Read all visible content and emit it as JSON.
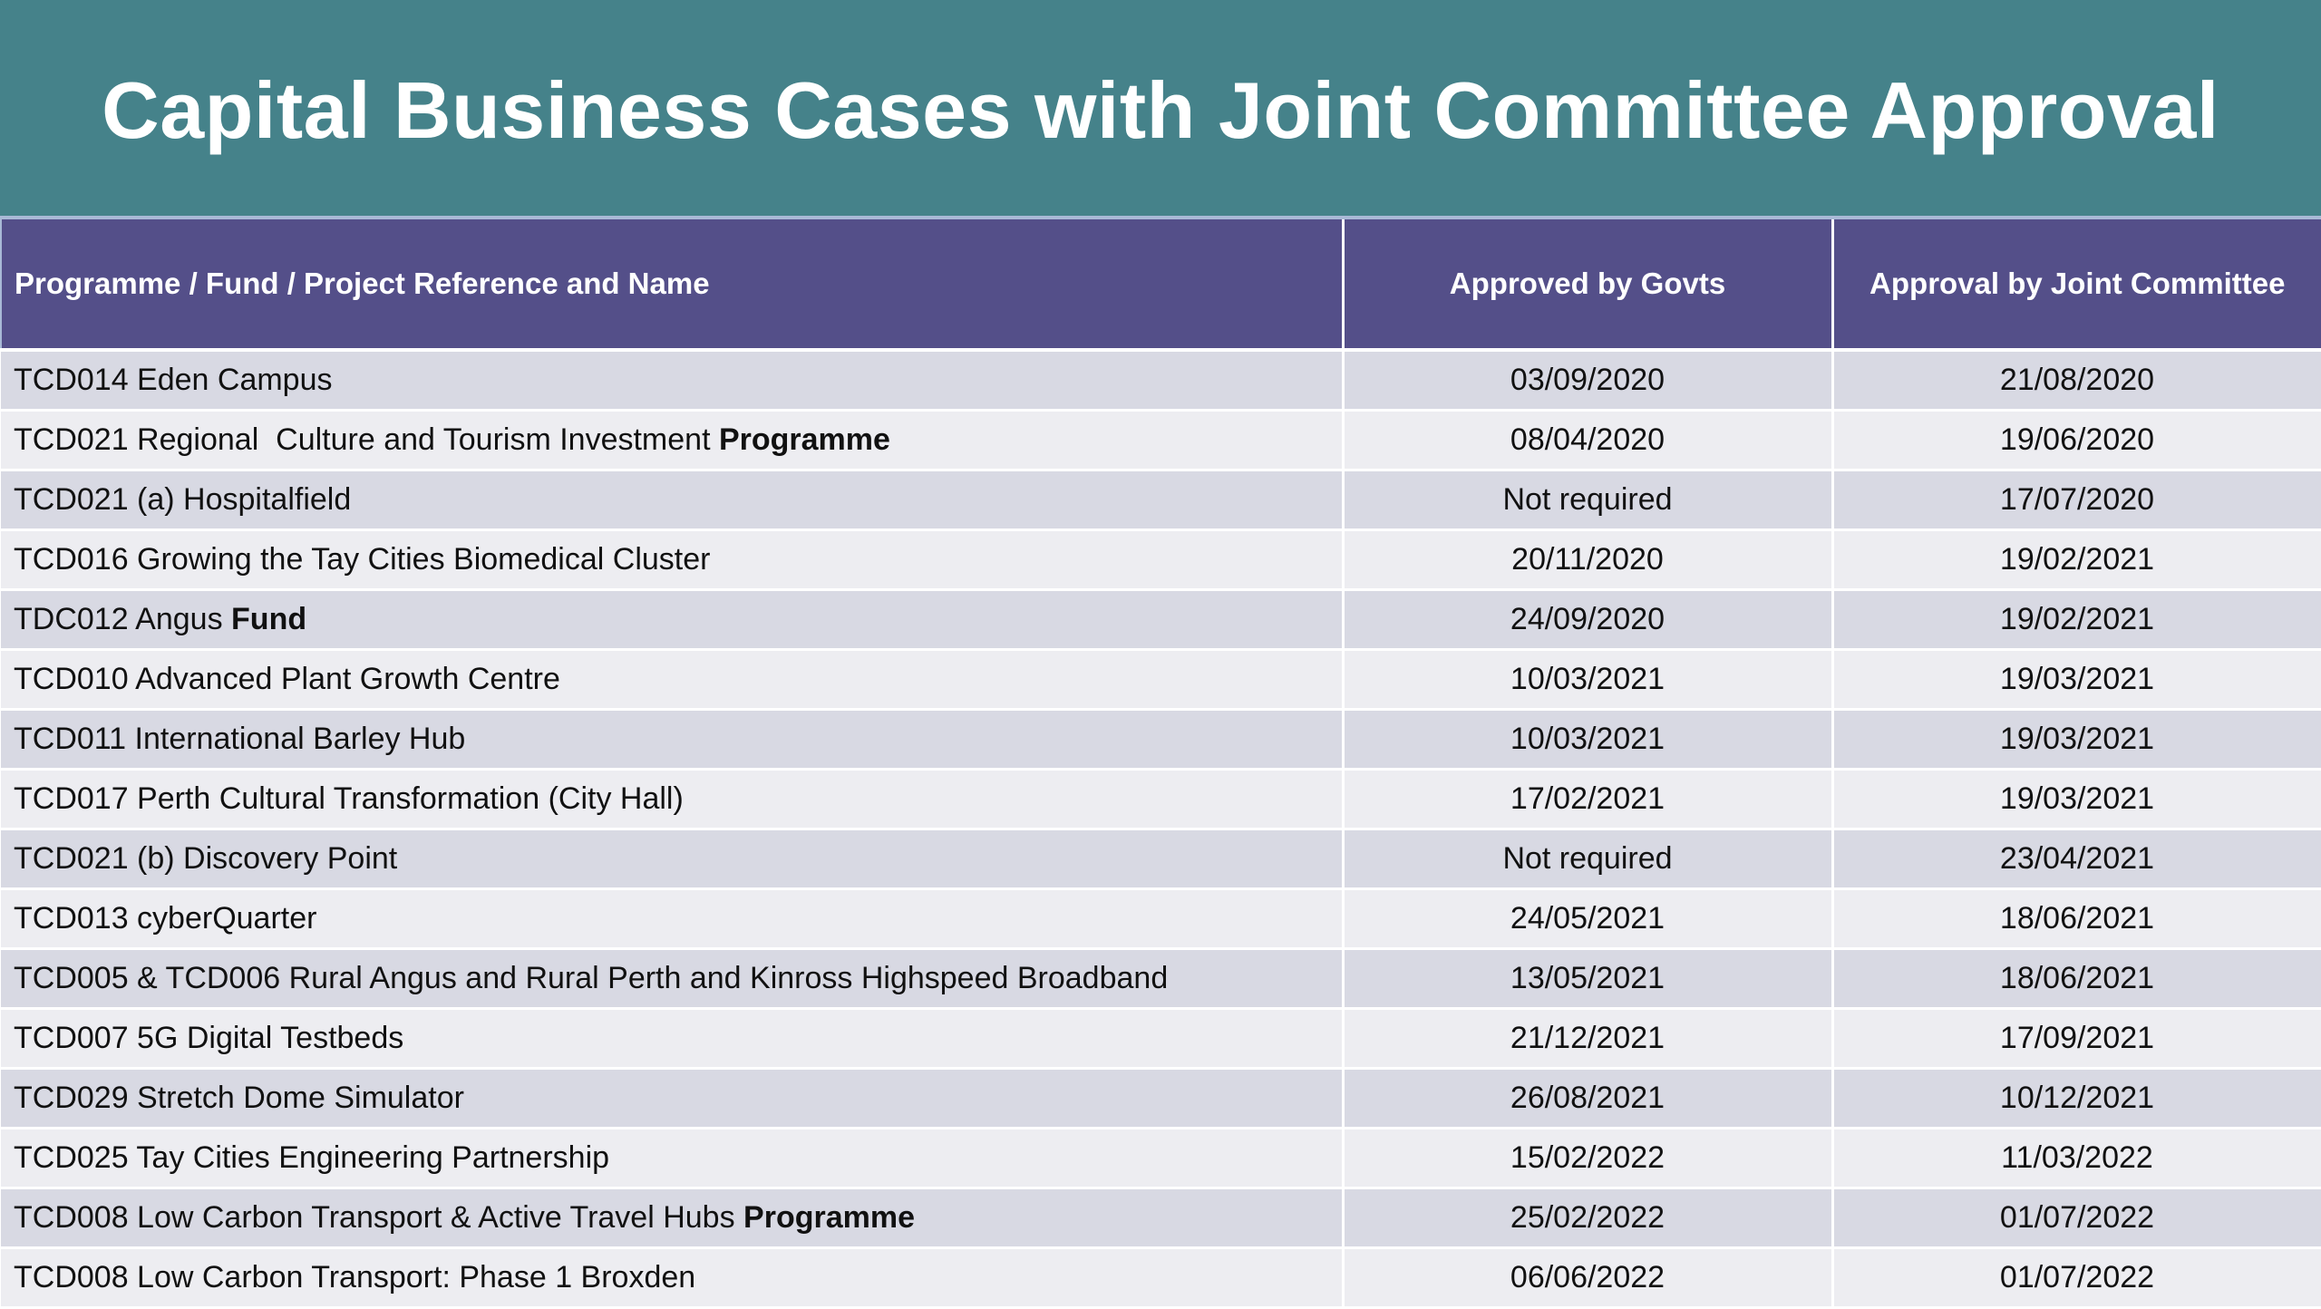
{
  "title": "Capital Business Cases with Joint Committee Approval",
  "colors": {
    "banner": "#45828A",
    "header": "#544F89",
    "row_odd": "#D8D9E3",
    "row_even": "#EDEDF1"
  },
  "table": {
    "headers": [
      "Programme / Fund / Project Reference and Name",
      "Approved by Govts",
      "Approval by Joint Committee"
    ],
    "rows": [
      {
        "name": "TCD014 Eden Campus",
        "suffix": "",
        "govts": "03/09/2020",
        "joint": "21/08/2020"
      },
      {
        "name": "TCD021 Regional  Culture and Tourism Investment ",
        "suffix": "Programme",
        "govts": "08/04/2020",
        "joint": "19/06/2020"
      },
      {
        "name": "TCD021 (a) Hospitalfield",
        "suffix": "",
        "govts": "Not required",
        "joint": "17/07/2020"
      },
      {
        "name": "TCD016 Growing the Tay Cities Biomedical Cluster",
        "suffix": "",
        "govts": "20/11/2020",
        "joint": "19/02/2021"
      },
      {
        "name": "TDC012 Angus ",
        "suffix": "Fund",
        "govts": "24/09/2020",
        "joint": "19/02/2021"
      },
      {
        "name": "TCD010 Advanced Plant Growth Centre",
        "suffix": "",
        "govts": "10/03/2021",
        "joint": "19/03/2021"
      },
      {
        "name": "TCD011 International Barley Hub",
        "suffix": "",
        "govts": "10/03/2021",
        "joint": "19/03/2021"
      },
      {
        "name": "TCD017 Perth Cultural Transformation (City Hall)",
        "suffix": "",
        "govts": "17/02/2021",
        "joint": "19/03/2021"
      },
      {
        "name": "TCD021 (b) Discovery Point",
        "suffix": "",
        "govts": "Not required",
        "joint": "23/04/2021"
      },
      {
        "name": "TCD013 cyberQuarter",
        "suffix": "",
        "govts": "24/05/2021",
        "joint": "18/06/2021"
      },
      {
        "name": "TCD005 & TCD006 Rural Angus and Rural Perth and Kinross Highspeed Broadband",
        "suffix": "",
        "govts": "13/05/2021",
        "joint": "18/06/2021"
      },
      {
        "name": "TCD007 5G Digital Testbeds",
        "suffix": "",
        "govts": "21/12/2021",
        "joint": "17/09/2021"
      },
      {
        "name": "TCD029 Stretch Dome Simulator",
        "suffix": "",
        "govts": "26/08/2021",
        "joint": "10/12/2021"
      },
      {
        "name": "TCD025 Tay Cities Engineering Partnership",
        "suffix": "",
        "govts": "15/02/2022",
        "joint": "11/03/2022"
      },
      {
        "name": "TCD008 Low Carbon Transport & Active Travel Hubs ",
        "suffix": "Programme",
        "govts": "25/02/2022",
        "joint": "01/07/2022"
      },
      {
        "name": "TCD008 Low Carbon Transport: Phase 1 Broxden",
        "suffix": "",
        "govts": "06/06/2022",
        "joint": "01/07/2022"
      }
    ]
  }
}
